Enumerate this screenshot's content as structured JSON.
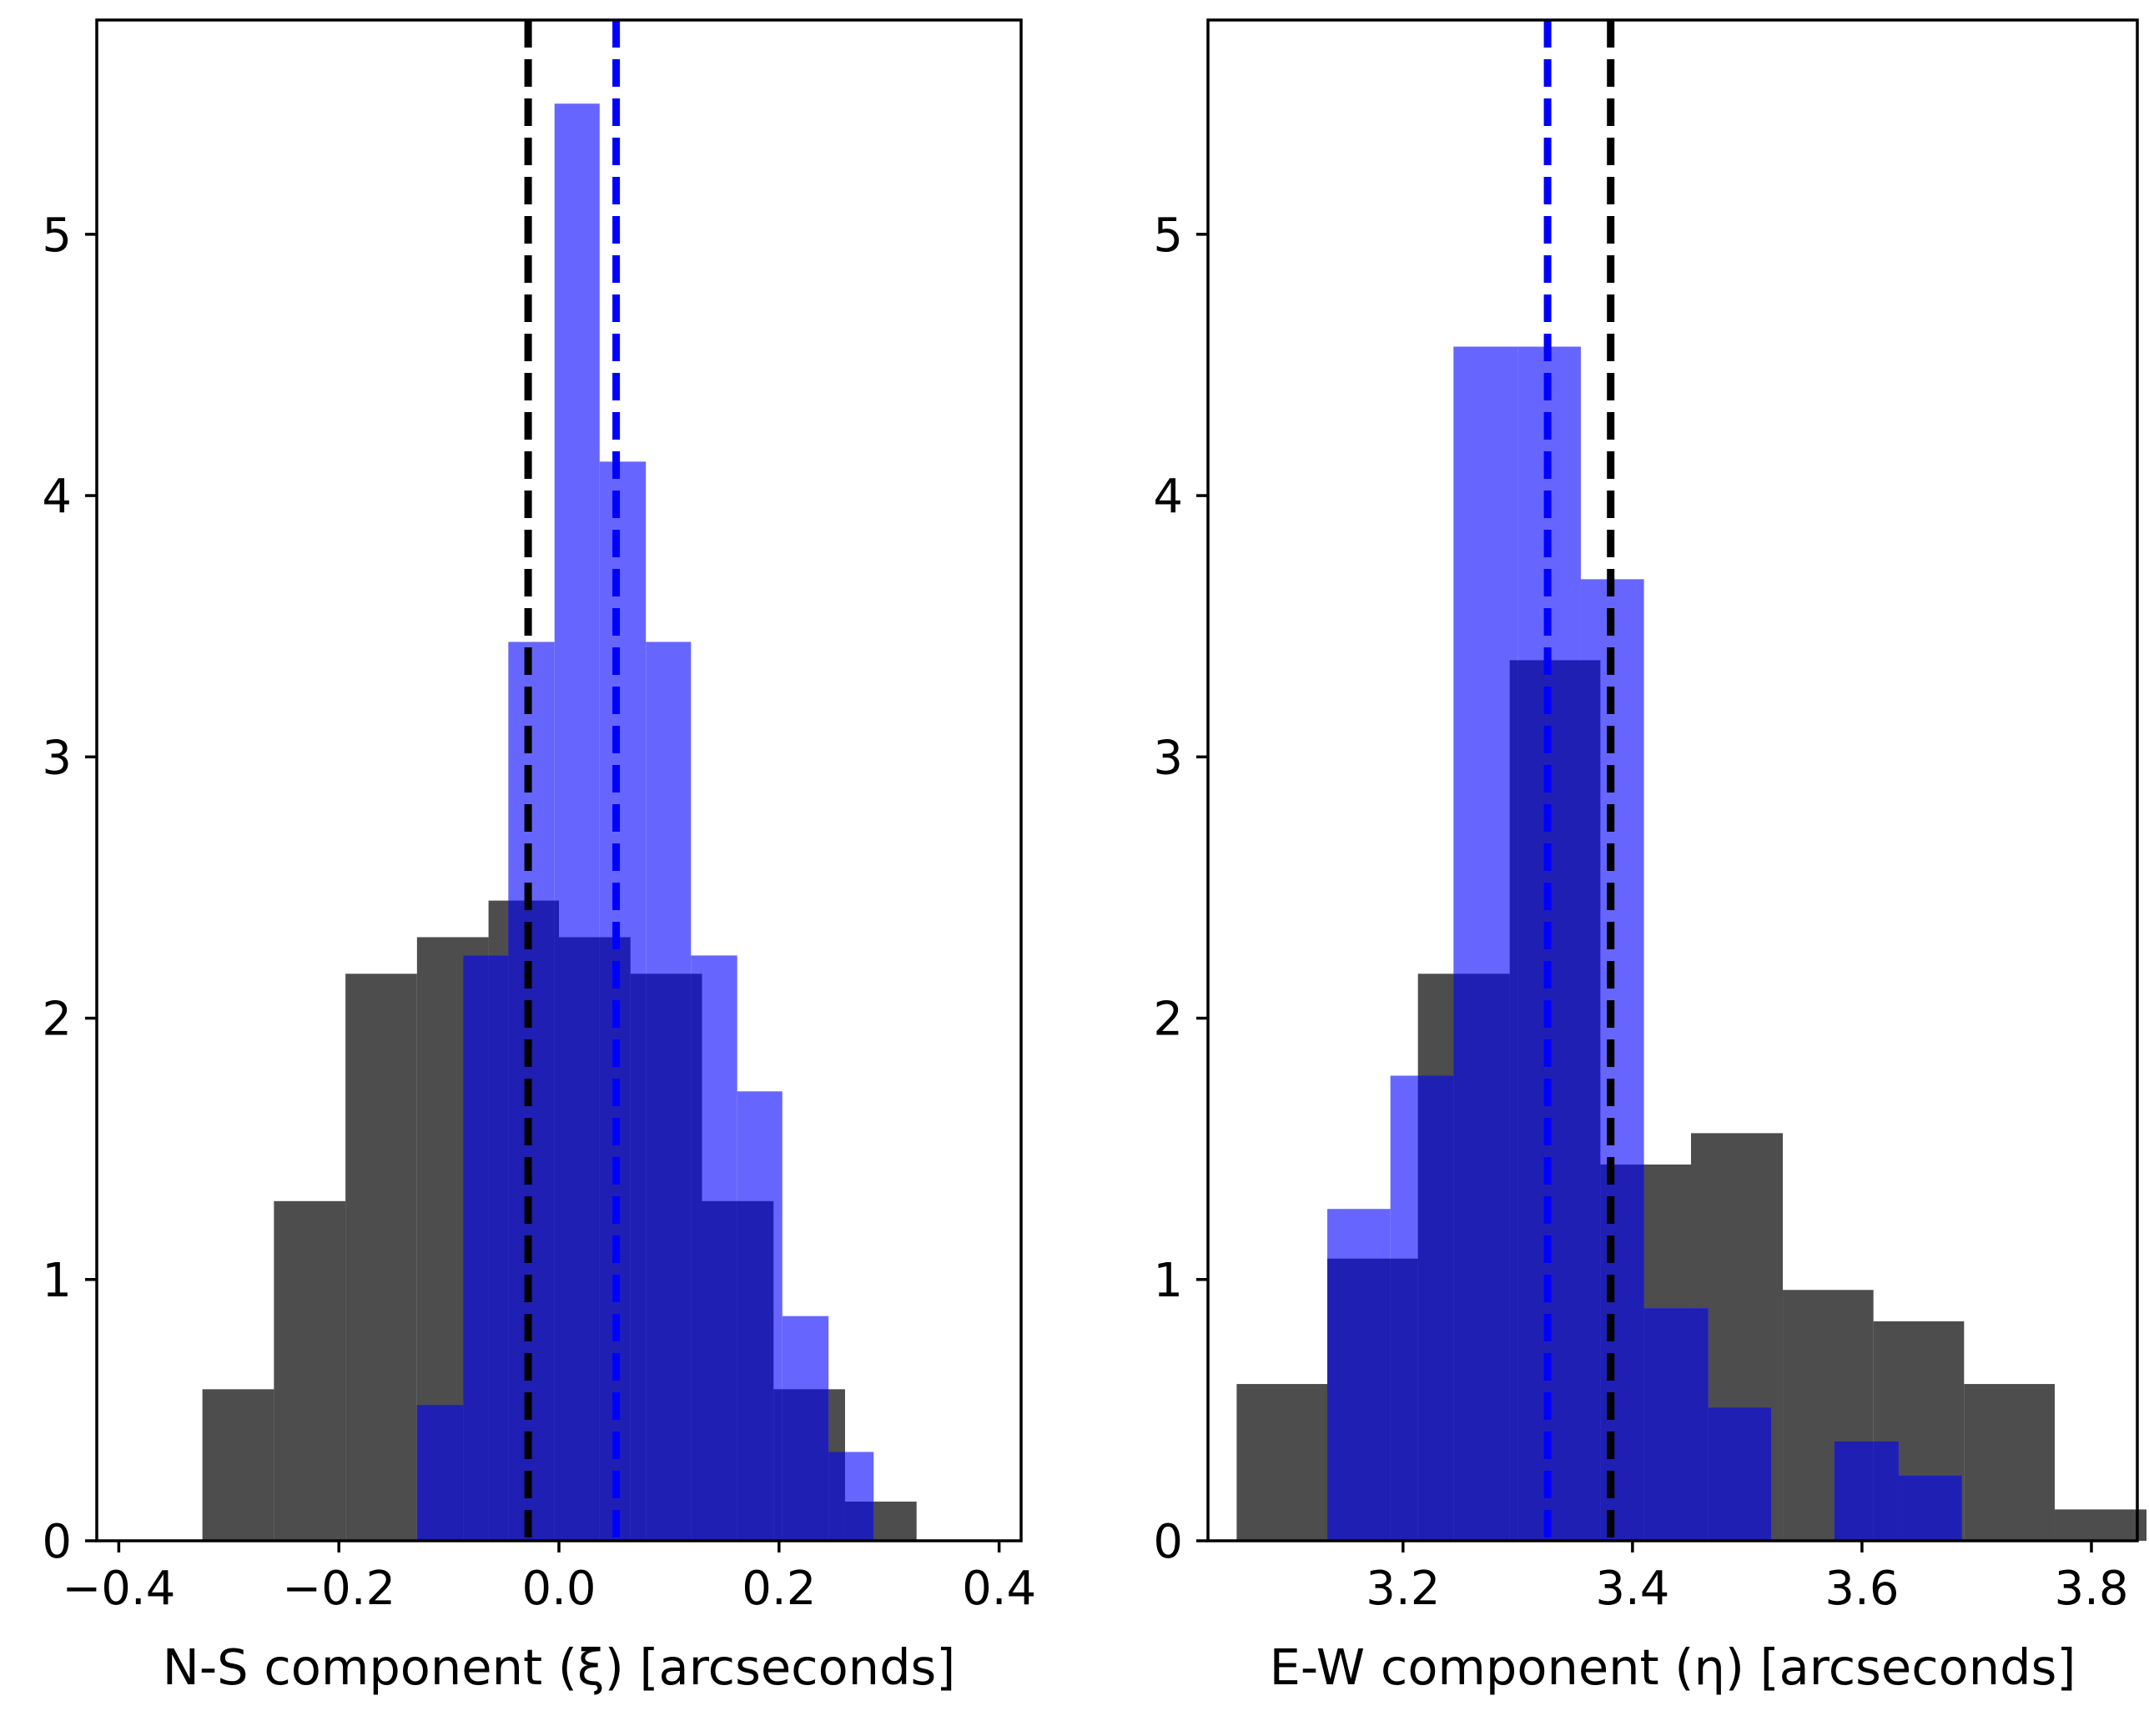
{
  "chart_data": [
    {
      "type": "histogram",
      "panel": "left",
      "title": "",
      "xlabel": "N-S component (ξ) [arcseconds]",
      "ylabel": "",
      "xlim": [
        -0.42,
        0.42
      ],
      "ylim": [
        0,
        5.82
      ],
      "xticks": [
        -0.4,
        -0.2,
        0.0,
        0.2,
        0.4
      ],
      "xtick_labels": [
        "−0.4",
        "−0.2",
        "0.0",
        "0.2",
        "0.4"
      ],
      "yticks": [
        0,
        1,
        2,
        3,
        4,
        5
      ],
      "ytick_labels": [
        "0",
        "1",
        "2",
        "3",
        "4",
        "5"
      ],
      "grid": false,
      "series": [
        {
          "name": "dark",
          "color": "#4d4d4d",
          "bins": [
            [
              -0.324,
              -0.259,
              0.58
            ],
            [
              -0.259,
              -0.194,
              1.3
            ],
            [
              -0.194,
              -0.129,
              2.17
            ],
            [
              -0.129,
              -0.064,
              2.31
            ],
            [
              -0.064,
              0.0,
              2.45
            ],
            [
              0.0,
              0.065,
              2.31
            ],
            [
              0.065,
              0.13,
              2.17
            ],
            [
              0.13,
              0.195,
              1.3
            ],
            [
              0.195,
              0.26,
              0.58
            ],
            [
              0.26,
              0.325,
              0.15
            ]
          ]
        },
        {
          "name": "blue",
          "color": "#6666ff",
          "bins": [
            [
              -0.129,
              -0.087,
              0.52
            ],
            [
              -0.087,
              -0.046,
              2.24
            ],
            [
              -0.046,
              -0.004,
              3.44
            ],
            [
              -0.004,
              0.037,
              5.5
            ],
            [
              0.037,
              0.079,
              4.13
            ],
            [
              0.079,
              0.12,
              3.44
            ],
            [
              0.12,
              0.162,
              2.24
            ],
            [
              0.162,
              0.203,
              1.72
            ],
            [
              0.203,
              0.245,
              0.86
            ],
            [
              0.245,
              0.286,
              0.34
            ]
          ]
        }
      ],
      "overlap_color": "#1f1fb4",
      "vlines": [
        {
          "x": -0.028,
          "color": "#000000",
          "style": "dashed"
        },
        {
          "x": 0.052,
          "color": "#0000ff",
          "style": "dashed"
        }
      ]
    },
    {
      "type": "histogram",
      "panel": "right",
      "title": "",
      "xlabel": "E-W component (η) [arcseconds]",
      "ylabel": "",
      "xlim": [
        3.03,
        3.84
      ],
      "ylim": [
        0,
        5.82
      ],
      "xticks": [
        3.2,
        3.4,
        3.6,
        3.8
      ],
      "xtick_labels": [
        "3.2",
        "3.4",
        "3.6",
        "3.8"
      ],
      "yticks": [
        0,
        1,
        2,
        3,
        4,
        5
      ],
      "ytick_labels": [
        "0",
        "1",
        "2",
        "3",
        "4",
        "5"
      ],
      "grid": false,
      "series": [
        {
          "name": "dark",
          "color": "#4d4d4d",
          "bins": [
            [
              3.055,
              3.134,
              0.6
            ],
            [
              3.134,
              3.213,
              1.08
            ],
            [
              3.213,
              3.293,
              2.17
            ],
            [
              3.293,
              3.372,
              3.37
            ],
            [
              3.372,
              3.451,
              1.44
            ],
            [
              3.451,
              3.531,
              1.56
            ],
            [
              3.531,
              3.61,
              0.96
            ],
            [
              3.61,
              3.689,
              0.84
            ],
            [
              3.689,
              3.768,
              0.6
            ],
            [
              3.768,
              3.848,
              0.12
            ]
          ]
        },
        {
          "name": "blue",
          "color": "#6666ff",
          "bins": [
            [
              3.134,
              3.189,
              1.27
            ],
            [
              3.189,
              3.244,
              1.78
            ],
            [
              3.244,
              3.3,
              4.57
            ],
            [
              3.3,
              3.355,
              4.57
            ],
            [
              3.355,
              3.41,
              3.68
            ],
            [
              3.41,
              3.466,
              0.89
            ],
            [
              3.466,
              3.521,
              0.51
            ],
            [
              3.521,
              3.576,
              0.0
            ],
            [
              3.576,
              3.632,
              0.38
            ],
            [
              3.632,
              3.687,
              0.25
            ]
          ]
        }
      ],
      "overlap_color": "#1f1fb4",
      "vlines": [
        {
          "x": 3.326,
          "color": "#0000ff",
          "style": "dashed"
        },
        {
          "x": 3.381,
          "color": "#000000",
          "style": "dashed"
        }
      ]
    }
  ]
}
